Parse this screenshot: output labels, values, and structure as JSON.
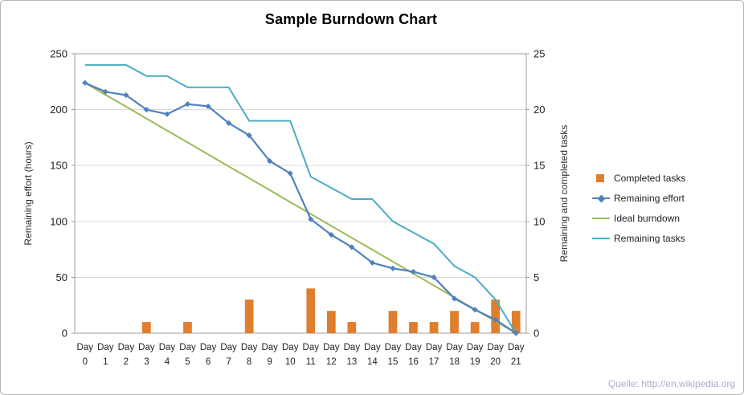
{
  "chart_data": {
    "type": "combo-bar-line",
    "title": "Sample Burndown Chart",
    "categories": [
      "Day 0",
      "Day 1",
      "Day 2",
      "Day 3",
      "Day 4",
      "Day 5",
      "Day 6",
      "Day 7",
      "Day 8",
      "Day 9",
      "Day 10",
      "Day 11",
      "Day 12",
      "Day 13",
      "Day 14",
      "Day 15",
      "Day 16",
      "Day 17",
      "Day 18",
      "Day 19",
      "Day 20",
      "Day 21"
    ],
    "left_axis": {
      "label": "Remaining effort (hours)",
      "min": 0,
      "max": 250,
      "step": 50,
      "tick_labels": [
        "0",
        "50",
        "100",
        "150",
        "200",
        "250"
      ]
    },
    "right_axis": {
      "label": "Remaining and  completed tasks",
      "min": 0,
      "max": 25,
      "step": 5,
      "tick_labels": [
        "0",
        "5",
        "10",
        "15",
        "20",
        "25"
      ]
    },
    "grid": "horizontal",
    "grid_color": "#d8d8d8",
    "axis_color": "#9e9e9e",
    "legend_position": "right",
    "series": [
      {
        "name": "Completed tasks",
        "type": "bar",
        "axis": "right",
        "color": "#de7e2e",
        "values": [
          0,
          0,
          0,
          1,
          0,
          1,
          0,
          0,
          3,
          0,
          0,
          4,
          2,
          1,
          0,
          2,
          1,
          1,
          2,
          1,
          3,
          2
        ]
      },
      {
        "name": "Remaining effort",
        "type": "line",
        "axis": "left",
        "color": "#4f81bd",
        "marker": "diamond",
        "values": [
          224,
          216,
          213,
          200,
          196,
          205,
          203,
          188,
          177,
          154,
          143,
          102,
          88,
          77,
          63,
          58,
          55,
          50,
          31,
          21,
          12,
          0
        ]
      },
      {
        "name": "Ideal burndown",
        "type": "line",
        "axis": "left",
        "color": "#9bbb59",
        "values": [
          224,
          213.3,
          202.7,
          192,
          181.3,
          170.7,
          160,
          149.3,
          138.7,
          128,
          117.3,
          106.7,
          96,
          85.3,
          74.7,
          64,
          53.3,
          42.7,
          32,
          21.3,
          10.7,
          0
        ]
      },
      {
        "name": "Remaining tasks",
        "type": "line",
        "axis": "right",
        "color": "#4bacc6",
        "values": [
          24,
          24,
          24,
          23,
          23,
          22,
          22,
          22,
          19,
          19,
          19,
          14,
          13,
          12,
          12,
          10,
          9,
          8,
          6,
          5,
          3,
          0
        ]
      }
    ]
  },
  "source_note": "Quelle: http://en.wikipedia.org"
}
